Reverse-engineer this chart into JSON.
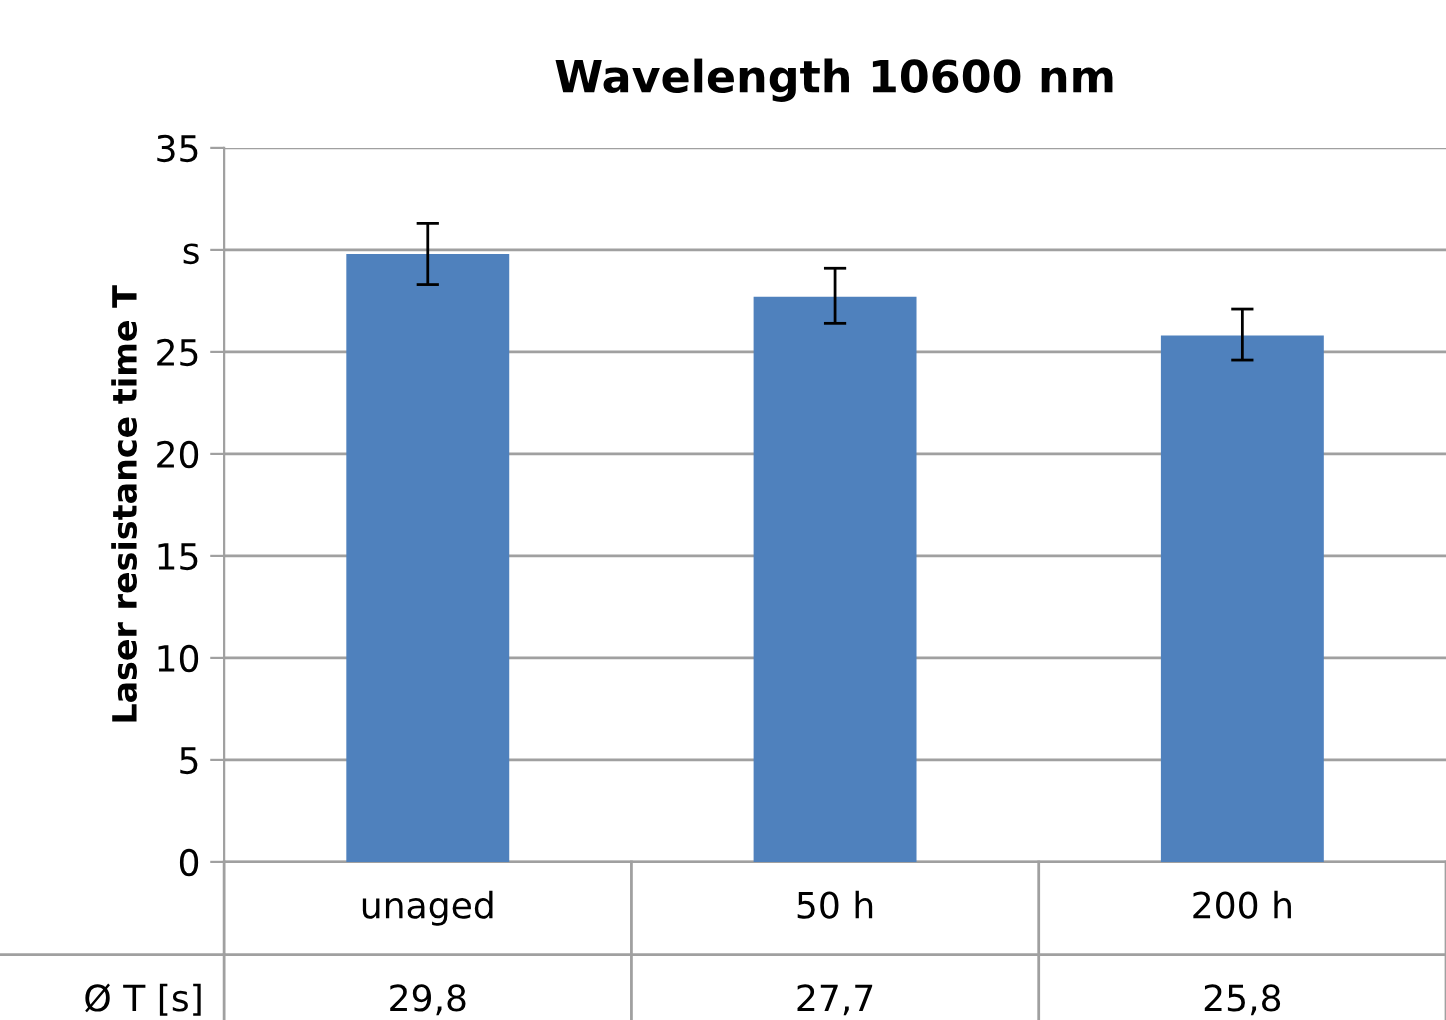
{
  "chart_data": {
    "type": "bar",
    "title": "Wavelength 10600 nm",
    "ylabel": "Laser resistance time T",
    "categories": [
      "unaged",
      "50 h",
      "200 h"
    ],
    "values": [
      29.8,
      27.7,
      25.8
    ],
    "color": "#4f81bd",
    "errors": [
      [
        28.3,
        31.3
      ],
      [
        26.4,
        29.1
      ],
      [
        24.6,
        27.1
      ]
    ],
    "value_labels": [
      "29,8",
      "27,7",
      "25,8"
    ],
    "annotations": [
      "Ø T [s]"
    ],
    "ylim": [
      0,
      35
    ],
    "yticks": [
      0,
      5,
      10,
      15,
      20,
      25,
      {
        "value": 30,
        "label": "s"
      },
      35
    ],
    "grid": "y",
    "legend": false
  }
}
